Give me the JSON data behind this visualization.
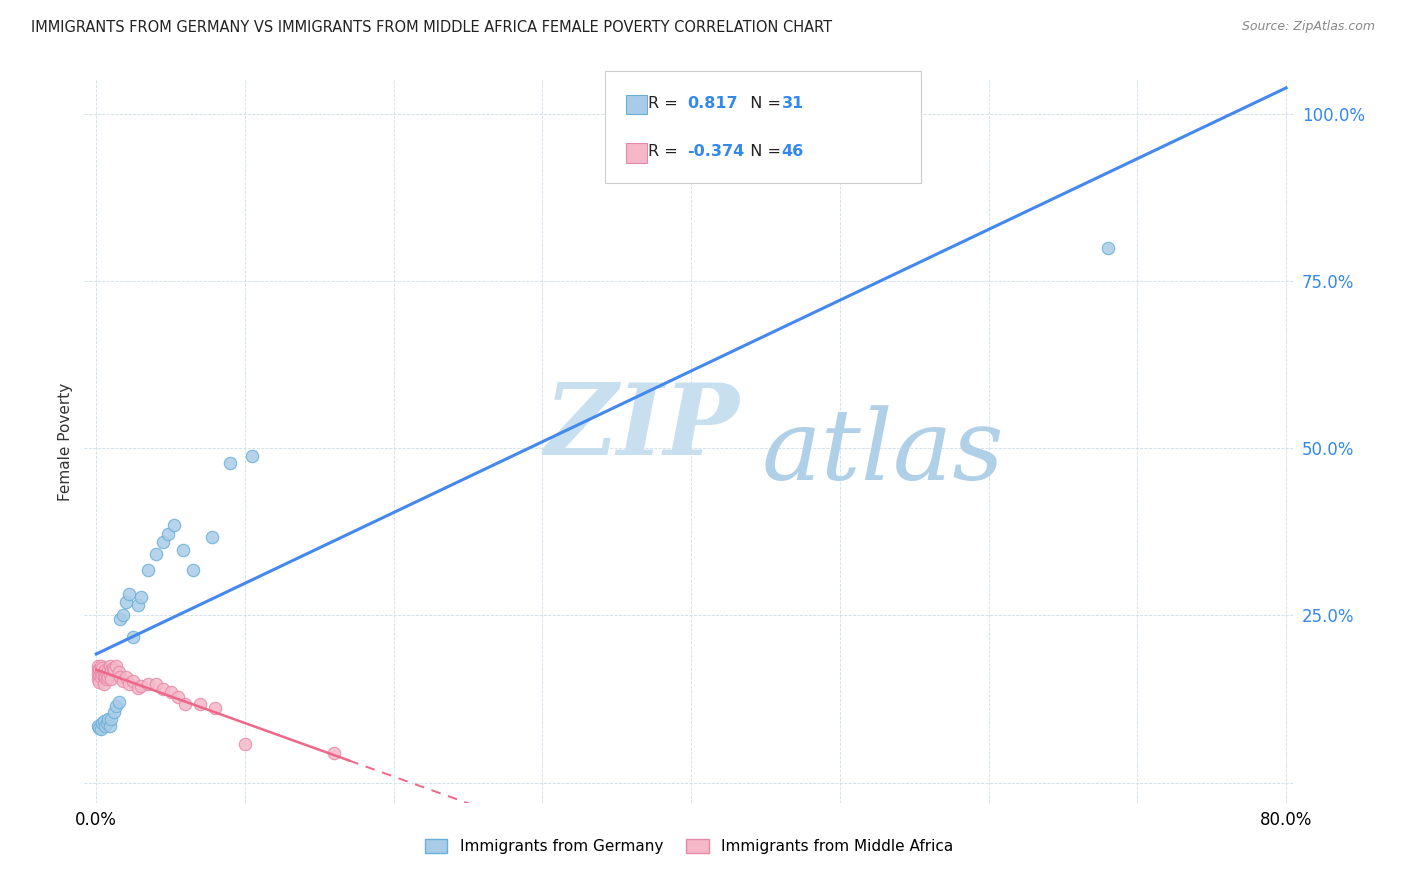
{
  "title": "IMMIGRANTS FROM GERMANY VS IMMIGRANTS FROM MIDDLE AFRICA FEMALE POVERTY CORRELATION CHART",
  "source": "Source: ZipAtlas.com",
  "ylabel": "Female Poverty",
  "x_tick_vals": [
    0.0,
    0.1,
    0.2,
    0.3,
    0.4,
    0.5,
    0.6,
    0.7,
    0.8
  ],
  "x_tick_labels": [
    "0.0%",
    "",
    "",
    "",
    "",
    "",
    "",
    "",
    "80.0%"
  ],
  "y_tick_vals": [
    0.0,
    0.25,
    0.5,
    0.75,
    1.0
  ],
  "y_tick_labels": [
    "",
    "25.0%",
    "50.0%",
    "75.0%",
    "100.0%"
  ],
  "germany_color": "#a8cce8",
  "germany_edge": "#6aaed6",
  "middle_africa_color": "#f4b8c8",
  "middle_africa_edge": "#e888a8",
  "regression_germany_color": "#4488ee",
  "regression_middle_africa_color": "#ee6688",
  "R_germany": "0.817",
  "N_germany": "31",
  "R_middle_africa": "-0.374",
  "N_middle_africa": "46",
  "watermark_zip": "ZIP",
  "watermark_atlas": "atlas",
  "watermark_color_zip": "#c8dff0",
  "watermark_color_atlas": "#b0d0e8",
  "germany_x": [
    0.001,
    0.002,
    0.003,
    0.004,
    0.005,
    0.006,
    0.007,
    0.008,
    0.009,
    0.01,
    0.012,
    0.013,
    0.015,
    0.016,
    0.018,
    0.02,
    0.022,
    0.025,
    0.028,
    0.03,
    0.035,
    0.04,
    0.045,
    0.048,
    0.052,
    0.058,
    0.065,
    0.078,
    0.09,
    0.105,
    0.68
  ],
  "germany_y": [
    0.085,
    0.082,
    0.08,
    0.09,
    0.092,
    0.085,
    0.09,
    0.095,
    0.085,
    0.095,
    0.105,
    0.115,
    0.12,
    0.245,
    0.25,
    0.27,
    0.282,
    0.218,
    0.265,
    0.278,
    0.318,
    0.342,
    0.36,
    0.372,
    0.385,
    0.348,
    0.318,
    0.368,
    0.478,
    0.488,
    0.8
  ],
  "middle_africa_x": [
    0.001,
    0.001,
    0.001,
    0.001,
    0.002,
    0.002,
    0.002,
    0.003,
    0.003,
    0.003,
    0.004,
    0.004,
    0.005,
    0.005,
    0.005,
    0.006,
    0.006,
    0.007,
    0.007,
    0.008,
    0.008,
    0.009,
    0.009,
    0.01,
    0.01,
    0.011,
    0.012,
    0.013,
    0.015,
    0.016,
    0.018,
    0.02,
    0.022,
    0.025,
    0.028,
    0.03,
    0.035,
    0.04,
    0.045,
    0.05,
    0.055,
    0.06,
    0.07,
    0.08,
    0.1,
    0.16
  ],
  "middle_africa_y": [
    0.175,
    0.168,
    0.162,
    0.155,
    0.17,
    0.16,
    0.15,
    0.175,
    0.165,
    0.158,
    0.162,
    0.172,
    0.165,
    0.158,
    0.148,
    0.168,
    0.158,
    0.162,
    0.155,
    0.168,
    0.158,
    0.175,
    0.162,
    0.168,
    0.155,
    0.172,
    0.168,
    0.175,
    0.165,
    0.158,
    0.152,
    0.158,
    0.148,
    0.152,
    0.142,
    0.145,
    0.148,
    0.148,
    0.14,
    0.135,
    0.128,
    0.118,
    0.118,
    0.112,
    0.058,
    0.045
  ]
}
